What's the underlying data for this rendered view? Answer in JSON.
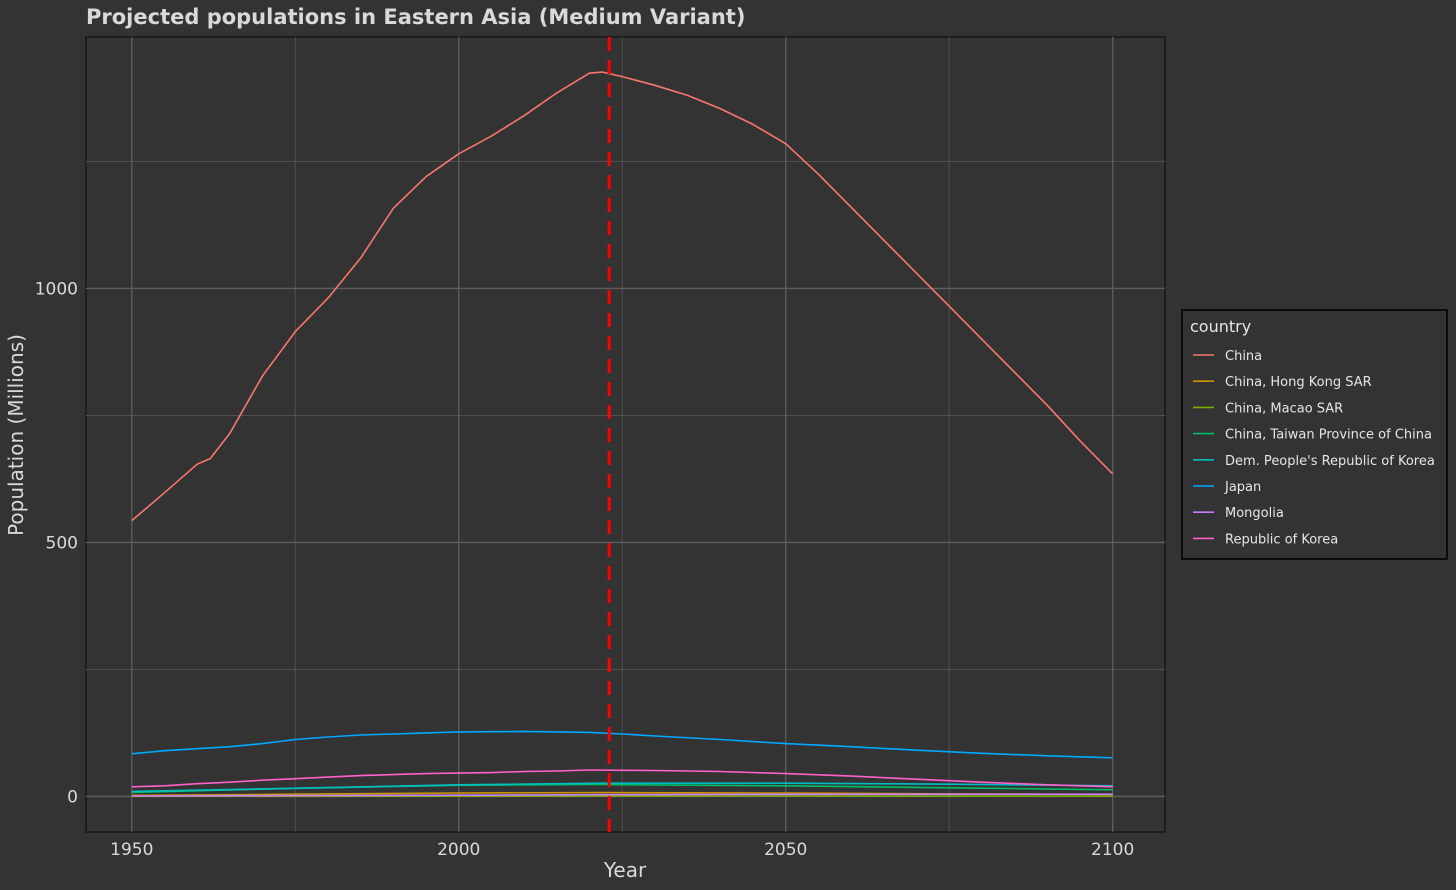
{
  "chart_data": {
    "type": "line",
    "title": "Projected populations in Eastern Asia (Medium Variant)",
    "xlabel": "Year",
    "ylabel": "Population (Millions)",
    "xlim": [
      1943,
      2108
    ],
    "ylim": [
      -70,
      1495
    ],
    "x_ticks": [
      1950,
      2000,
      2050,
      2100
    ],
    "x_tick_labels": [
      "1950",
      "2000",
      "2050",
      "2100"
    ],
    "x_minor_grid": [
      1975,
      2025,
      2075
    ],
    "y_ticks": [
      0,
      500,
      1000
    ],
    "y_tick_labels": [
      "0",
      "500",
      "1000"
    ],
    "y_minor_grid": [
      250,
      750,
      1250
    ],
    "grid": true,
    "vline": {
      "x": 2023,
      "color": "#ff0000",
      "style": "dashed"
    },
    "legend": {
      "title": "country",
      "position": "right"
    },
    "series": [
      {
        "name": "China",
        "color": "#f8766d",
        "x": [
          1950,
          1955,
          1960,
          1962,
          1965,
          1970,
          1975,
          1980,
          1985,
          1990,
          1995,
          2000,
          2005,
          2010,
          2015,
          2020,
          2022,
          2025,
          2030,
          2035,
          2040,
          2045,
          2050,
          2055,
          2060,
          2065,
          2070,
          2075,
          2080,
          2085,
          2090,
          2095,
          2100
        ],
        "y": [
          543,
          598,
          654,
          665,
          715,
          828,
          915,
          981,
          1060,
          1158,
          1220,
          1265,
          1300,
          1340,
          1385,
          1424,
          1426,
          1417,
          1400,
          1380,
          1354,
          1323,
          1285,
          1225,
          1160,
          1095,
          1030,
          965,
          900,
          835,
          770,
          700,
          635
        ]
      },
      {
        "name": "China, Hong Kong SAR",
        "color": "#cd9600",
        "x": [
          1950,
          1975,
          2000,
          2022,
          2050,
          2075,
          2100
        ],
        "y": [
          2,
          4.5,
          6.7,
          7.5,
          6.5,
          5,
          4
        ]
      },
      {
        "name": "China, Macao SAR",
        "color": "#7cae00",
        "x": [
          1950,
          2000,
          2022,
          2050,
          2100
        ],
        "y": [
          0.2,
          0.4,
          0.7,
          0.8,
          0.6
        ]
      },
      {
        "name": "China, Taiwan Province of China",
        "color": "#00be67",
        "x": [
          1950,
          1975,
          2000,
          2020,
          2050,
          2075,
          2100
        ],
        "y": [
          8,
          16,
          22,
          23.5,
          21,
          17,
          13
        ]
      },
      {
        "name": "Dem. People's Republic of Korea",
        "color": "#00bfc4",
        "x": [
          1950,
          1975,
          2000,
          2022,
          2050,
          2075,
          2100
        ],
        "y": [
          10,
          16,
          23,
          26,
          26,
          24,
          21
        ]
      },
      {
        "name": "Japan",
        "color": "#00a9ff",
        "x": [
          1950,
          1955,
          1960,
          1965,
          1970,
          1975,
          1980,
          1985,
          1990,
          1995,
          2000,
          2005,
          2010,
          2015,
          2020,
          2025,
          2030,
          2040,
          2050,
          2060,
          2070,
          2080,
          2090,
          2100
        ],
        "y": [
          84,
          90,
          94,
          98,
          104,
          112,
          117,
          121,
          123,
          125,
          127,
          127.5,
          128,
          127,
          126,
          123,
          119,
          112,
          104,
          98,
          91,
          85,
          80,
          76
        ]
      },
      {
        "name": "Mongolia",
        "color": "#c77cff",
        "x": [
          1950,
          2000,
          2022,
          2050,
          2100
        ],
        "y": [
          0.8,
          2.4,
          3.4,
          4,
          4.5
        ]
      },
      {
        "name": "Republic of Korea",
        "color": "#ff61cc",
        "x": [
          1950,
          1955,
          1960,
          1965,
          1970,
          1975,
          1980,
          1985,
          1990,
          1995,
          2000,
          2005,
          2010,
          2015,
          2020,
          2025,
          2030,
          2040,
          2050,
          2060,
          2070,
          2080,
          2090,
          2100
        ],
        "y": [
          19,
          21,
          25,
          28,
          32,
          35,
          38,
          41,
          43,
          45,
          46,
          47,
          49,
          50,
          52,
          51.5,
          51,
          49,
          45,
          40,
          34,
          28,
          23,
          19
        ]
      }
    ]
  }
}
